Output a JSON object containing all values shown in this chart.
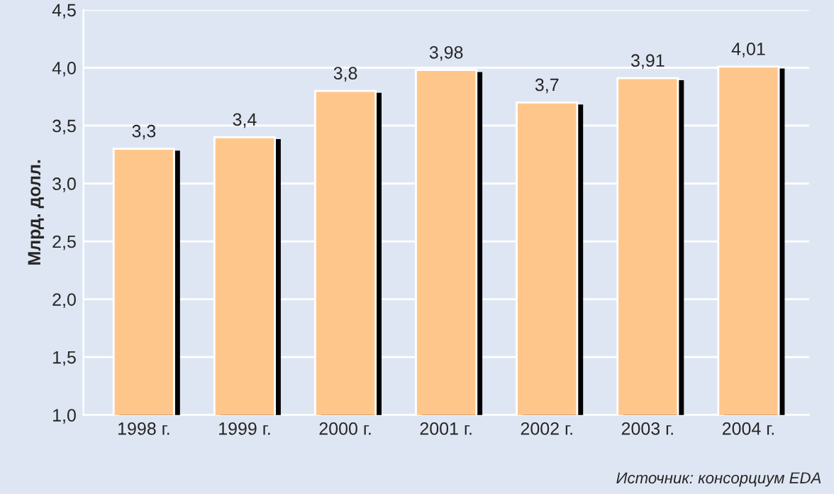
{
  "chart_data": {
    "type": "bar",
    "ylabel": "Млрд. долл.",
    "categories": [
      "1998 г.",
      "1999 г.",
      "2000 г.",
      "2001 г.",
      "2002 г.",
      "2003 г.",
      "2004 г."
    ],
    "values": [
      3.3,
      3.4,
      3.8,
      3.98,
      3.7,
      3.91,
      4.01
    ],
    "value_labels": [
      "3,3",
      "3,4",
      "3,8",
      "3,98",
      "3,7",
      "3,91",
      "4,01"
    ],
    "color": "#ffc68c",
    "ylim": [
      1.0,
      4.5
    ],
    "yticks": [
      {
        "value": 1.0,
        "label": "1,0"
      },
      {
        "value": 1.5,
        "label": "1,5"
      },
      {
        "value": 2.0,
        "label": "2,0"
      },
      {
        "value": 2.5,
        "label": "2,5"
      },
      {
        "value": 3.0,
        "label": "3,0"
      },
      {
        "value": 3.5,
        "label": "3,5"
      },
      {
        "value": 4.0,
        "label": "4,0"
      },
      {
        "value": 4.5,
        "label": "4,5"
      }
    ],
    "grid": "y",
    "annotations": [
      "Источник: консорциум EDA"
    ]
  }
}
